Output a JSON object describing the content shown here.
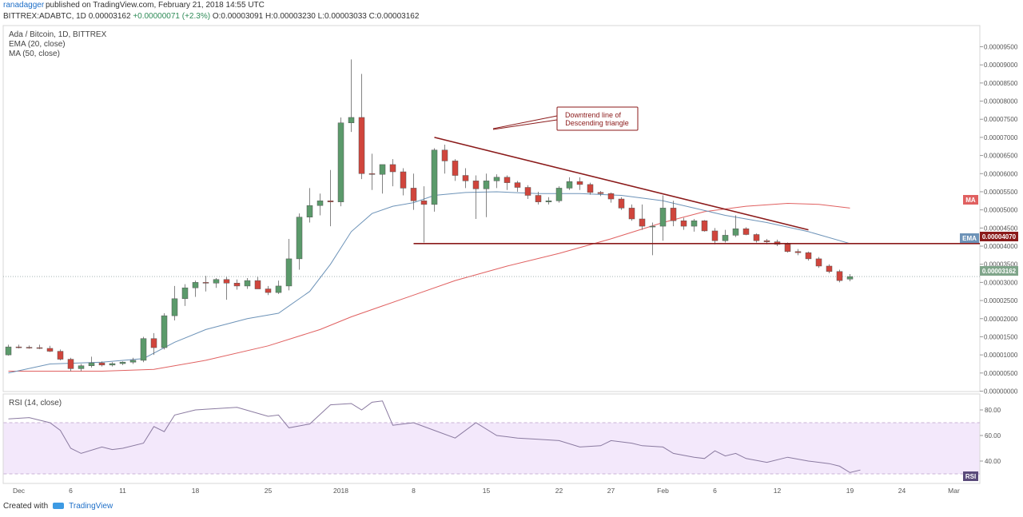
{
  "header": {
    "author": "ranadagger",
    "published": "published on TradingView.com, February 21, 2018 14:55 UTC",
    "symbol_line": "BITTREX:ADABTC, 1D",
    "last": "0.00003162",
    "change": "+0.00000071 (+2.3%)",
    "o": "O:0.00003091",
    "h": "H:0.00003230",
    "l": "L:0.00003033",
    "c": "C:0.00003162"
  },
  "legend": {
    "title": "Ada / Bitcoin, 1D, BITTREX",
    "ema": "EMA (20, close)",
    "ma": "MA (50, close)"
  },
  "rsi": {
    "label": "RSI (14, close)",
    "badge": "RSI"
  },
  "annotation": {
    "line1": "Downtrend line of",
    "line2": "Descending triangle"
  },
  "tags": {
    "ma": "MA",
    "ema": "EMA",
    "ema_value": "0.00004070",
    "last_value": "0.00003162"
  },
  "footer": {
    "created": "Created with",
    "brand": "TradingView"
  },
  "colors": {
    "up": "#5b9a6b",
    "down": "#d0453c",
    "ema": "#6d93b8",
    "ma": "#e06060",
    "trend": "#8b1a1a",
    "rsi": "#8a7aa0"
  },
  "chart_data": {
    "type": "candlestick",
    "title": "Ada / Bitcoin, 1D, BITTREX",
    "y_unit": "BTC",
    "ylim": [
      0.0,
      9.5e-05
    ],
    "y_ticks": [
      "0.00000000",
      "0.00000500",
      "0.00001000",
      "0.00001500",
      "0.00002000",
      "0.00002500",
      "0.00003000",
      "0.00003500",
      "0.00004000",
      "0.00004500",
      "0.00005000",
      "0.00005500",
      "0.00006000",
      "0.00006500",
      "0.00007000",
      "0.00007500",
      "0.00008000",
      "0.00008500",
      "0.00009000",
      "0.00009500"
    ],
    "x_ticks": [
      {
        "label": "Dec",
        "day": 0
      },
      {
        "label": "6",
        "day": 5
      },
      {
        "label": "11",
        "day": 10
      },
      {
        "label": "18",
        "day": 17
      },
      {
        "label": "25",
        "day": 24
      },
      {
        "label": "2018",
        "day": 31
      },
      {
        "label": "8",
        "day": 38
      },
      {
        "label": "15",
        "day": 45
      },
      {
        "label": "22",
        "day": 52
      },
      {
        "label": "27",
        "day": 57
      },
      {
        "label": "Feb",
        "day": 62
      },
      {
        "label": "6",
        "day": 67
      },
      {
        "label": "12",
        "day": 73
      },
      {
        "label": "19",
        "day": 80
      },
      {
        "label": "24",
        "day": 85
      },
      {
        "label": "Mar",
        "day": 90
      }
    ],
    "candles": [
      [
        -1,
        1e-05,
        1.28e-05,
        9.8e-06,
        1.22e-05
      ],
      [
        0,
        1.22e-05,
        1.28e-05,
        1.18e-05,
        1.21e-05
      ],
      [
        1,
        1.21e-05,
        1.26e-05,
        1.17e-05,
        1.2e-05
      ],
      [
        2,
        1.2e-05,
        1.28e-05,
        1.16e-05,
        1.18e-05
      ],
      [
        3,
        1.18e-05,
        1.25e-05,
        1.08e-05,
        1.1e-05
      ],
      [
        4,
        1.1e-05,
        1.15e-05,
        8.5e-06,
        8.8e-06
      ],
      [
        5,
        8.8e-06,
        9.2e-06,
        5.5e-06,
        6.2e-06
      ],
      [
        6,
        6.2e-06,
        7.5e-06,
        5.5e-06,
        7e-06
      ],
      [
        7,
        7e-06,
        9.5e-06,
        6.5e-06,
        7.8e-06
      ],
      [
        8,
        7.8e-06,
        8.2e-06,
        6.8e-06,
        7.2e-06
      ],
      [
        9,
        7.2e-06,
        8e-06,
        6.8e-06,
        7.6e-06
      ],
      [
        10,
        7.6e-06,
        8.2e-06,
        7.2e-06,
        8e-06
      ],
      [
        11,
        8e-06,
        9.2e-06,
        7.5e-06,
        8.5e-06
      ],
      [
        12,
        8.5e-06,
        1.5e-05,
        8e-06,
        1.45e-05
      ],
      [
        13,
        1.45e-05,
        1.6e-05,
        1e-05,
        1.2e-05
      ],
      [
        14,
        1.2e-05,
        2.15e-05,
        1.15e-05,
        2.08e-05
      ],
      [
        15,
        2.08e-05,
        2.9e-05,
        1.95e-05,
        2.55e-05
      ],
      [
        16,
        2.55e-05,
        2.95e-05,
        2.35e-05,
        2.85e-05
      ],
      [
        17,
        2.85e-05,
        3.05e-05,
        2.6e-05,
        3e-05
      ],
      [
        18,
        3e-05,
        3.18e-05,
        2.75e-05,
        2.98e-05
      ],
      [
        19,
        2.98e-05,
        3.12e-05,
        2.85e-05,
        3.08e-05
      ],
      [
        20,
        3.08e-05,
        3.15e-05,
        2.52e-05,
        2.98e-05
      ],
      [
        21,
        2.98e-05,
        3.08e-05,
        2.8e-05,
        2.9e-05
      ],
      [
        22,
        2.9e-05,
        3.12e-05,
        2.82e-05,
        3.05e-05
      ],
      [
        23,
        3.05e-05,
        3.15e-05,
        2.82e-05,
        2.82e-05
      ],
      [
        24,
        2.82e-05,
        2.9e-05,
        2.65e-05,
        2.72e-05
      ],
      [
        25,
        2.72e-05,
        3.05e-05,
        2.68e-05,
        2.9e-05
      ],
      [
        26,
        2.9e-05,
        4.2e-05,
        2.78e-05,
        3.65e-05
      ],
      [
        27,
        3.65e-05,
        4.9e-05,
        3.35e-05,
        4.8e-05
      ],
      [
        28,
        4.8e-05,
        5.6e-05,
        4.65e-05,
        5.12e-05
      ],
      [
        29,
        5.12e-05,
        5.45e-05,
        4.85e-05,
        5.25e-05
      ],
      [
        30,
        5.25e-05,
        6.1e-05,
        4.55e-05,
        5.22e-05
      ],
      [
        31,
        5.22e-05,
        7.55e-05,
        5.1e-05,
        7.4e-05
      ],
      [
        32,
        7.4e-05,
        9.15e-05,
        7.15e-05,
        7.55e-05
      ],
      [
        33,
        7.55e-05,
        8.75e-05,
        5.85e-05,
        6e-05
      ],
      [
        34,
        6e-05,
        6.55e-05,
        5.55e-05,
        5.98e-05
      ],
      [
        35,
        5.98e-05,
        6.2e-05,
        5.45e-05,
        6.25e-05
      ],
      [
        36,
        6.25e-05,
        6.4e-05,
        5.65e-05,
        6.05e-05
      ],
      [
        37,
        6.05e-05,
        6.15e-05,
        5.4e-05,
        5.6e-05
      ],
      [
        38,
        5.6e-05,
        6e-05,
        5e-05,
        5.25e-05
      ],
      [
        39,
        5.25e-05,
        5.65e-05,
        4.1e-05,
        5.15e-05
      ],
      [
        40,
        5.15e-05,
        6.7e-05,
        4.95e-05,
        6.65e-05
      ],
      [
        41,
        6.65e-05,
        6.8e-05,
        6e-05,
        6.35e-05
      ],
      [
        42,
        6.35e-05,
        6.4e-05,
        5.8e-05,
        5.95e-05
      ],
      [
        43,
        5.95e-05,
        6.15e-05,
        5.6e-05,
        5.8e-05
      ],
      [
        44,
        5.8e-05,
        5.95e-05,
        4.75e-05,
        5.58e-05
      ],
      [
        45,
        5.58e-05,
        6e-05,
        4.8e-05,
        5.8e-05
      ],
      [
        46,
        5.8e-05,
        5.98e-05,
        5.6e-05,
        5.9e-05
      ],
      [
        47,
        5.9e-05,
        5.95e-05,
        5.55e-05,
        5.75e-05
      ],
      [
        48,
        5.75e-05,
        5.8e-05,
        5.5e-05,
        5.62e-05
      ],
      [
        49,
        5.62e-05,
        5.68e-05,
        5.3e-05,
        5.4e-05
      ],
      [
        50,
        5.4e-05,
        5.5e-05,
        5.15e-05,
        5.22e-05
      ],
      [
        51,
        5.22e-05,
        5.35e-05,
        5.15e-05,
        5.25e-05
      ],
      [
        52,
        5.25e-05,
        5.65e-05,
        5.2e-05,
        5.6e-05
      ],
      [
        53,
        5.6e-05,
        5.9e-05,
        5.55e-05,
        5.78e-05
      ],
      [
        54,
        5.78e-05,
        5.9e-05,
        5.55e-05,
        5.7e-05
      ],
      [
        55,
        5.7e-05,
        5.75e-05,
        5.42e-05,
        5.48e-05
      ],
      [
        56,
        5.48e-05,
        5.52e-05,
        5.38e-05,
        5.45e-05
      ],
      [
        57,
        5.45e-05,
        5.48e-05,
        5.2e-05,
        5.3e-05
      ],
      [
        58,
        5.3e-05,
        5.35e-05,
        5e-05,
        5.05e-05
      ],
      [
        59,
        5.05e-05,
        5.15e-05,
        4.7e-05,
        4.75e-05
      ],
      [
        60,
        4.75e-05,
        5.15e-05,
        4.45e-05,
        4.55e-05
      ],
      [
        61,
        4.55e-05,
        4.65e-05,
        3.75e-05,
        4.55e-05
      ],
      [
        62,
        4.55e-05,
        5.4e-05,
        4.15e-05,
        5.05e-05
      ],
      [
        63,
        5.05e-05,
        5.25e-05,
        4.55e-05,
        4.7e-05
      ],
      [
        64,
        4.7e-05,
        4.78e-05,
        4.45e-05,
        4.55e-05
      ],
      [
        65,
        4.55e-05,
        4.75e-05,
        4.4e-05,
        4.7e-05
      ],
      [
        66,
        4.7e-05,
        4.72e-05,
        4.4e-05,
        4.42e-05
      ],
      [
        67,
        4.42e-05,
        4.5e-05,
        4.05e-05,
        4.15e-05
      ],
      [
        68,
        4.15e-05,
        4.45e-05,
        4.1e-05,
        4.3e-05
      ],
      [
        69,
        4.3e-05,
        4.85e-05,
        4.25e-05,
        4.48e-05
      ],
      [
        70,
        4.48e-05,
        4.52e-05,
        4.3e-05,
        4.32e-05
      ],
      [
        71,
        4.32e-05,
        4.35e-05,
        4.1e-05,
        4.15e-05
      ],
      [
        72,
        4.15e-05,
        4.2e-05,
        4.05e-05,
        4.12e-05
      ],
      [
        73,
        4.12e-05,
        4.18e-05,
        4e-05,
        4.05e-05
      ],
      [
        74,
        4.05e-05,
        4.1e-05,
        3.82e-05,
        3.85e-05
      ],
      [
        75,
        3.85e-05,
        3.92e-05,
        3.75e-05,
        3.82e-05
      ],
      [
        76,
        3.82e-05,
        3.85e-05,
        3.6e-05,
        3.65e-05
      ],
      [
        77,
        3.65e-05,
        3.7e-05,
        3.4e-05,
        3.45e-05
      ],
      [
        78,
        3.45e-05,
        3.5e-05,
        3.25e-05,
        3.3e-05
      ],
      [
        79,
        3.3e-05,
        3.35e-05,
        3e-05,
        3.05e-05
      ],
      [
        80,
        3.09e-05,
        3.23e-05,
        3.03e-05,
        3.16e-05
      ]
    ],
    "ema20": [
      [
        -1,
        5e-06
      ],
      [
        3,
        7.5e-06
      ],
      [
        8,
        8e-06
      ],
      [
        12,
        9e-06
      ],
      [
        15,
        1.35e-05
      ],
      [
        18,
        1.7e-05
      ],
      [
        22,
        2e-05
      ],
      [
        25,
        2.15e-05
      ],
      [
        28,
        2.75e-05
      ],
      [
        30,
        3.5e-05
      ],
      [
        32,
        4.4e-05
      ],
      [
        34,
        4.9e-05
      ],
      [
        36,
        5.1e-05
      ],
      [
        38,
        5.2e-05
      ],
      [
        40,
        5.4e-05
      ],
      [
        43,
        5.48e-05
      ],
      [
        46,
        5.5e-05
      ],
      [
        50,
        5.45e-05
      ],
      [
        54,
        5.45e-05
      ],
      [
        58,
        5.4e-05
      ],
      [
        62,
        5.25e-05
      ],
      [
        65,
        5.05e-05
      ],
      [
        68,
        4.85e-05
      ],
      [
        72,
        4.65e-05
      ],
      [
        76,
        4.4e-05
      ],
      [
        80,
        4.07e-05
      ]
    ],
    "ma50": [
      [
        -1,
        5.5e-06
      ],
      [
        8,
        5.5e-06
      ],
      [
        13,
        6e-06
      ],
      [
        18,
        8.5e-06
      ],
      [
        24,
        1.25e-05
      ],
      [
        29,
        1.7e-05
      ],
      [
        32,
        2.05e-05
      ],
      [
        35,
        2.35e-05
      ],
      [
        38,
        2.65e-05
      ],
      [
        42,
        3.05e-05
      ],
      [
        47,
        3.45e-05
      ],
      [
        52,
        3.8e-05
      ],
      [
        57,
        4.2e-05
      ],
      [
        62,
        4.65e-05
      ],
      [
        66,
        4.95e-05
      ],
      [
        70,
        5.1e-05
      ],
      [
        74,
        5.18e-05
      ],
      [
        77,
        5.15e-05
      ],
      [
        80,
        5.05e-05
      ]
    ],
    "rsi": {
      "ylim": [
        30,
        90
      ],
      "band": [
        30,
        70
      ],
      "y_ticks": [
        40,
        60,
        80
      ],
      "values": [
        [
          -1,
          73
        ],
        [
          1,
          74
        ],
        [
          3,
          70
        ],
        [
          4,
          64
        ],
        [
          5,
          50
        ],
        [
          6,
          46
        ],
        [
          8,
          51
        ],
        [
          9,
          49
        ],
        [
          10,
          50
        ],
        [
          12,
          54
        ],
        [
          13,
          67
        ],
        [
          14,
          63
        ],
        [
          15,
          76
        ],
        [
          17,
          80
        ],
        [
          19,
          81
        ],
        [
          21,
          82
        ],
        [
          24,
          75
        ],
        [
          25,
          76
        ],
        [
          26,
          66
        ],
        [
          28,
          69
        ],
        [
          30,
          84
        ],
        [
          32,
          85
        ],
        [
          33,
          80
        ],
        [
          34,
          86
        ],
        [
          35,
          87
        ],
        [
          36,
          68
        ],
        [
          38,
          70
        ],
        [
          40,
          64
        ],
        [
          42,
          58
        ],
        [
          44,
          70
        ],
        [
          46,
          60
        ],
        [
          48,
          58
        ],
        [
          50,
          57
        ],
        [
          52,
          56
        ],
        [
          54,
          51
        ],
        [
          56,
          52
        ],
        [
          57,
          56
        ],
        [
          59,
          54
        ],
        [
          60,
          52
        ],
        [
          62,
          51
        ],
        [
          63,
          46
        ],
        [
          65,
          43
        ],
        [
          66,
          42
        ],
        [
          67,
          48
        ],
        [
          68,
          44
        ],
        [
          69,
          46
        ],
        [
          70,
          42
        ],
        [
          72,
          39
        ],
        [
          74,
          43
        ],
        [
          76,
          40
        ],
        [
          78,
          38
        ],
        [
          79,
          36
        ],
        [
          80,
          31
        ],
        [
          81,
          33
        ]
      ]
    },
    "levels": {
      "support": 4.07e-05
    },
    "trendline": [
      [
        40,
        7e-05
      ],
      [
        76,
        4.45e-05
      ]
    ]
  }
}
